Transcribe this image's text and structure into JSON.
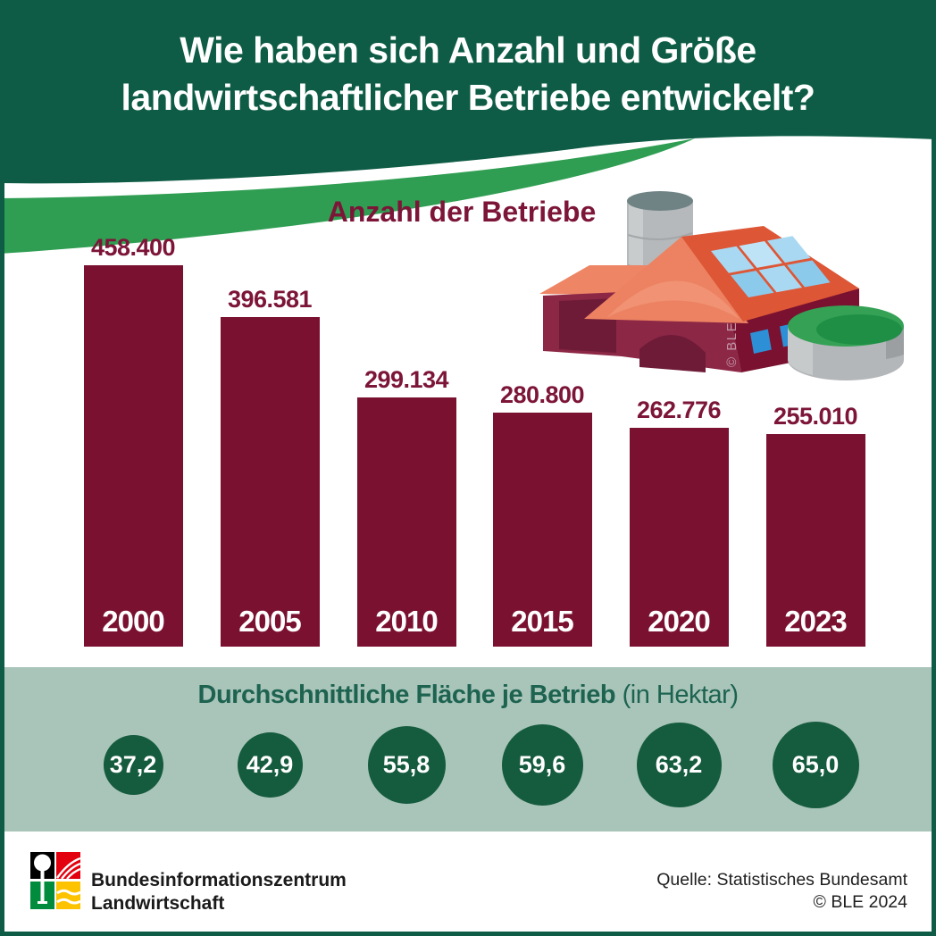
{
  "header": {
    "title_line1": "Wie haben sich Anzahl und Größe",
    "title_line2": "landwirtschaftlicher Betriebe entwickelt?"
  },
  "chart_data": [
    {
      "type": "bar",
      "title": "Anzahl der Betriebe",
      "categories": [
        "2000",
        "2005",
        "2010",
        "2015",
        "2020",
        "2023"
      ],
      "values": [
        458400,
        396581,
        299134,
        280800,
        262776,
        255010
      ],
      "value_labels": [
        "458.400",
        "396.581",
        "299.134",
        "280.800",
        "262.776",
        "255.010"
      ],
      "bar_color": "#7a1130",
      "label_color": "#7c1538",
      "xlabel": "",
      "ylabel": "",
      "ylim": [
        0,
        458400
      ],
      "grid": false,
      "legend": "none"
    },
    {
      "type": "bubble",
      "title": "Durchschnittliche Fläche je Betrieb",
      "subtitle": "(in Hektar)",
      "unit": "Hektar",
      "categories": [
        "2000",
        "2005",
        "2010",
        "2015",
        "2020",
        "2023"
      ],
      "values": [
        37.2,
        42.9,
        55.8,
        59.6,
        63.2,
        65.0
      ],
      "value_labels": [
        "37,2",
        "42,9",
        "55,8",
        "59,6",
        "63,2",
        "65,0"
      ],
      "bubble_color": "#155b3e"
    }
  ],
  "illustration": {
    "watermark": "© BLE"
  },
  "footer": {
    "org_line1": "Bundesinformationszentrum",
    "org_line2": "Landwirtschaft",
    "source": "Quelle: Statistisches Bundesamt",
    "copyright": "© BLE 2024"
  },
  "colors": {
    "header_green": "#0e5c45",
    "swoosh_green": "#2f9e52",
    "band_sage": "#a9c5ba",
    "circle_green": "#155b3e",
    "bar_maroon": "#7a1130",
    "band_title_green": "#1d6350"
  }
}
